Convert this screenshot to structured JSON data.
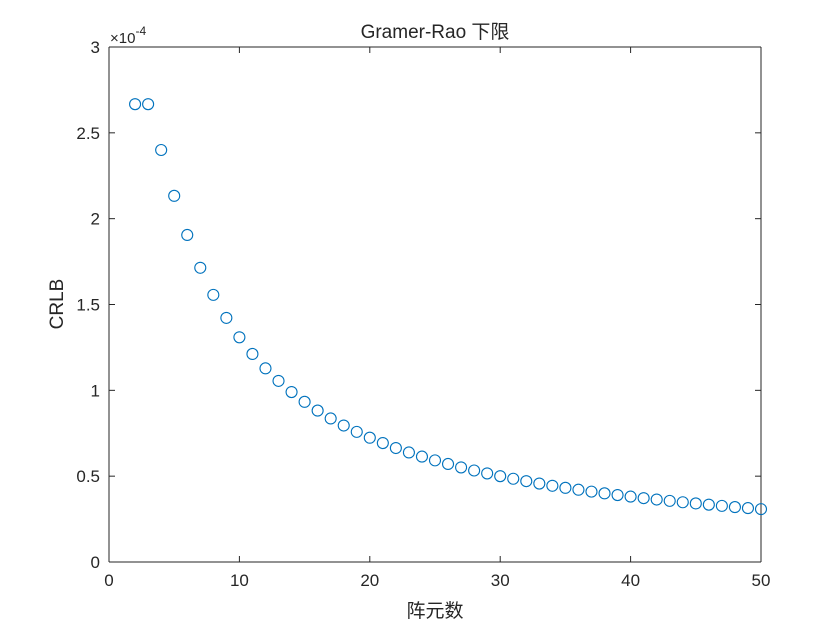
{
  "chart_data": {
    "type": "scatter",
    "title": "Gramer-Rao 下限",
    "xlabel": "阵元数",
    "ylabel": "CRLB",
    "xlim": [
      0,
      50
    ],
    "ylim": [
      0,
      3
    ],
    "xticks": [
      "0",
      "10",
      "20",
      "30",
      "40",
      "50"
    ],
    "yticks": [
      "0",
      "0.5",
      "1",
      "1.5",
      "2",
      "2.5",
      "3"
    ],
    "y_exponent_multiplier": "×10",
    "y_exponent_power": "-4",
    "grid": false,
    "marker": "open-circle",
    "marker_color": "#0072BD",
    "series": [
      {
        "x": [
          2,
          3,
          4,
          5,
          6,
          7,
          8,
          9,
          10,
          11,
          12,
          13,
          14,
          15,
          16,
          17,
          18,
          19,
          20,
          21,
          22,
          23,
          24,
          25,
          26,
          27,
          28,
          29,
          30,
          31,
          32,
          33,
          34,
          35,
          36,
          37,
          38,
          39,
          40,
          41,
          42,
          43,
          44,
          45,
          46,
          47,
          48,
          49,
          50
        ],
        "values": [
          2.667,
          2.667,
          2.4,
          2.133,
          1.905,
          1.714,
          1.556,
          1.422,
          1.309,
          1.212,
          1.128,
          1.055,
          0.99,
          0.933,
          0.882,
          0.836,
          0.795,
          0.758,
          0.724,
          0.693,
          0.664,
          0.638,
          0.614,
          0.592,
          0.571,
          0.551,
          0.533,
          0.516,
          0.5,
          0.485,
          0.471,
          0.457,
          0.444,
          0.432,
          0.421,
          0.41,
          0.4,
          0.39,
          0.381,
          0.372,
          0.364,
          0.356,
          0.348,
          0.341,
          0.334,
          0.327,
          0.32,
          0.314,
          0.308
        ]
      }
    ]
  }
}
